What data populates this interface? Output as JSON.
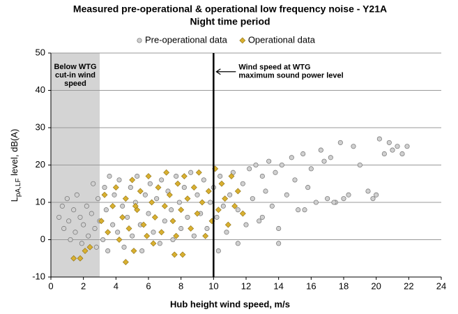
{
  "chart_data": {
    "type": "scatter",
    "title": "Measured pre-operational & operational low frequency noise - Y21A",
    "subtitle": "Night time period",
    "x_label": "Hub height wind speed, m/s",
    "y_label": "L",
    "y_label_sub": "pA,LF",
    "y_label_rest": " level, dB(A)",
    "xlim": [
      0,
      24
    ],
    "ylim": [
      -10,
      50
    ],
    "xticks": [
      0,
      2,
      4,
      6,
      8,
      10,
      12,
      14,
      16,
      18,
      20,
      22,
      24
    ],
    "yticks": [
      -10,
      0,
      10,
      20,
      30,
      40,
      50
    ],
    "grid": true,
    "shade_xlim": [
      0,
      3
    ],
    "shade_label": [
      "Below WTG",
      "cut-in wind",
      "speed"
    ],
    "vline_x": 10,
    "vline_label": [
      "Wind speed at WTG",
      "maximum sound power level"
    ],
    "series": [
      {
        "name": "Pre-operational data",
        "color": "#d0d0d0",
        "marker": "circle",
        "x": [
          0.5,
          0.7,
          0.8,
          1.0,
          1.1,
          1.2,
          1.4,
          1.5,
          1.6,
          1.8,
          1.9,
          2.0,
          2.2,
          2.3,
          2.5,
          2.6,
          2.7,
          2.8,
          2.9,
          3.0,
          3.2,
          3.3,
          3.4,
          3.5,
          3.6,
          3.8,
          3.9,
          4.1,
          4.2,
          4.4,
          4.5,
          4.7,
          4.9,
          5.0,
          5.2,
          5.3,
          5.5,
          5.6,
          5.8,
          6.0,
          6.1,
          6.3,
          6.5,
          6.7,
          6.8,
          7.0,
          7.2,
          7.4,
          7.5,
          7.7,
          7.9,
          8.0,
          8.2,
          8.4,
          8.6,
          8.8,
          9.0,
          9.2,
          9.4,
          9.6,
          9.8,
          10.0,
          10.2,
          10.4,
          10.6,
          10.8,
          11.0,
          11.2,
          11.5,
          11.8,
          12.0,
          12.2,
          12.4,
          12.6,
          12.8,
          13.0,
          13.2,
          13.4,
          13.6,
          13.8,
          14.0,
          14.2,
          14.5,
          14.8,
          15.0,
          15.2,
          15.5,
          15.8,
          16.0,
          16.3,
          16.6,
          17.0,
          17.2,
          17.5,
          17.8,
          18.0,
          18.3,
          18.6,
          19.0,
          19.5,
          20.0,
          20.2,
          20.5,
          20.8,
          21.0,
          21.3,
          21.6,
          21.9,
          16.8,
          19.8,
          14.0,
          13.0,
          11.5,
          10.3,
          15.6,
          17.4
        ],
        "values": [
          6,
          9,
          3,
          11,
          5,
          0,
          8,
          2,
          12,
          6,
          -1,
          4,
          9,
          1,
          7,
          15,
          3,
          -2,
          11,
          5,
          0,
          14,
          8,
          -3,
          17,
          4,
          12,
          2,
          16,
          9,
          -2,
          6,
          14,
          1,
          10,
          17,
          4,
          -3,
          12,
          7,
          15,
          2,
          11,
          -1,
          16,
          5,
          13,
          8,
          0,
          17,
          10,
          3,
          14,
          6,
          18,
          1,
          12,
          7,
          16,
          3,
          10,
          14,
          6,
          17,
          9,
          2,
          12,
          18,
          8,
          15,
          4,
          19,
          11,
          20,
          5,
          17,
          13,
          21,
          9,
          18,
          3,
          20,
          12,
          22,
          16,
          8,
          23,
          14,
          19,
          10,
          24,
          11,
          22,
          10,
          26,
          11,
          12,
          25,
          20,
          13,
          12,
          27,
          23,
          26,
          24,
          25,
          23,
          25,
          21,
          11,
          -1,
          6,
          -1,
          -3,
          8,
          10
        ]
      },
      {
        "name": "Operational data",
        "color": "#d9b030",
        "marker": "diamond",
        "x": [
          1.4,
          1.8,
          2.1,
          2.4,
          3.1,
          3.3,
          3.5,
          3.8,
          4.0,
          4.2,
          4.4,
          4.6,
          4.8,
          5.0,
          5.1,
          5.3,
          5.5,
          5.7,
          5.9,
          6.0,
          6.2,
          6.4,
          6.6,
          6.8,
          7.0,
          7.1,
          7.3,
          7.5,
          7.6,
          7.8,
          8.0,
          8.1,
          8.2,
          8.4,
          8.6,
          8.8,
          9.0,
          9.1,
          9.3,
          9.5,
          9.7,
          9.9,
          10.1,
          10.3,
          10.5,
          10.7,
          10.9,
          11.1,
          11.3,
          11.5,
          11.8,
          6.3,
          7.7,
          5.2,
          4.6
        ],
        "values": [
          -5,
          -5,
          -3,
          -2,
          5,
          12,
          2,
          9,
          14,
          0,
          6,
          11,
          3,
          16,
          -3,
          8,
          13,
          4,
          1,
          17,
          10,
          6,
          14,
          2,
          9,
          18,
          12,
          5,
          -4,
          15,
          8,
          -4,
          17,
          11,
          3,
          14,
          7,
          18,
          10,
          1,
          13,
          5,
          19,
          8,
          15,
          11,
          4,
          17,
          9,
          13,
          7,
          -1,
          1,
          9,
          -6
        ]
      }
    ]
  }
}
